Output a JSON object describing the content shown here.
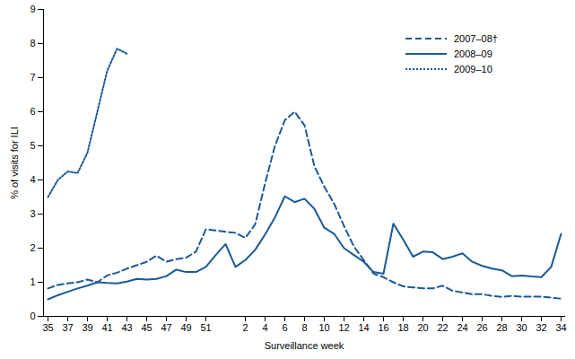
{
  "chart_data": {
    "type": "line",
    "x_label": "Surveillance week",
    "y_label": "% of visits for ILI",
    "categories": [
      "35",
      null,
      "37",
      null,
      "39",
      null,
      "41",
      null,
      "43",
      null,
      "45",
      null,
      "47",
      null,
      "49",
      null,
      "51",
      null,
      null,
      null,
      "2",
      null,
      "4",
      null,
      "6",
      null,
      "8",
      null,
      "10",
      null,
      "12",
      null,
      "14",
      null,
      "16",
      null,
      "18",
      null,
      "20",
      null,
      "22",
      null,
      "24",
      null,
      "26",
      null,
      "28",
      null,
      "30",
      null,
      "32",
      null,
      "34"
    ],
    "ylim": [
      0,
      9
    ],
    "yticks": [
      0,
      1,
      2,
      3,
      4,
      5,
      6,
      7,
      8,
      9
    ],
    "grid": false,
    "legend": "top-right",
    "series": [
      {
        "name": "2007–08†",
        "color": "#1a5a96",
        "line_style": "dashed",
        "values": [
          0.82,
          0.92,
          0.97,
          1.0,
          1.08,
          1.0,
          1.2,
          1.28,
          1.4,
          1.5,
          1.6,
          1.78,
          1.6,
          1.68,
          1.72,
          1.9,
          2.55,
          2.52,
          2.48,
          2.45,
          2.3,
          2.7,
          3.9,
          5.0,
          5.75,
          6.0,
          5.6,
          4.4,
          3.8,
          3.3,
          2.65,
          2.05,
          1.65,
          1.25,
          1.15,
          1.0,
          0.88,
          0.85,
          0.82,
          0.82,
          0.9,
          0.75,
          0.7,
          0.65,
          0.65,
          0.6,
          0.57,
          0.6,
          0.58,
          0.58,
          0.58,
          0.55,
          0.52
        ]
      },
      {
        "name": "2008–09",
        "color": "#1a5a96",
        "line_style": "solid",
        "values": [
          0.5,
          0.62,
          0.72,
          0.82,
          0.9,
          1.0,
          0.98,
          0.97,
          1.02,
          1.1,
          1.08,
          1.1,
          1.18,
          1.37,
          1.3,
          1.3,
          1.45,
          1.8,
          2.12,
          1.45,
          1.65,
          1.95,
          2.4,
          2.9,
          3.52,
          3.35,
          3.45,
          3.15,
          2.6,
          2.42,
          2.0,
          1.8,
          1.6,
          1.3,
          1.25,
          2.72,
          2.25,
          1.75,
          1.9,
          1.88,
          1.68,
          1.75,
          1.85,
          1.6,
          1.48,
          1.4,
          1.35,
          1.18,
          1.2,
          1.17,
          1.15,
          1.45,
          2.42
        ]
      },
      {
        "name": "2009–10",
        "color": "#1a5a96",
        "line_style": "dotted",
        "values": [
          3.5,
          4.0,
          4.25,
          4.2,
          4.8,
          6.0,
          7.2,
          7.85,
          7.7,
          null,
          null,
          null,
          null,
          null,
          null,
          null,
          null,
          null,
          null,
          null,
          null,
          null,
          null,
          null,
          null,
          null,
          null,
          null,
          null,
          null,
          null,
          null,
          null,
          null,
          null,
          null,
          null,
          null,
          null,
          null,
          null,
          null,
          null,
          null,
          null,
          null,
          null,
          null,
          null,
          null,
          null,
          null,
          null
        ]
      }
    ]
  }
}
